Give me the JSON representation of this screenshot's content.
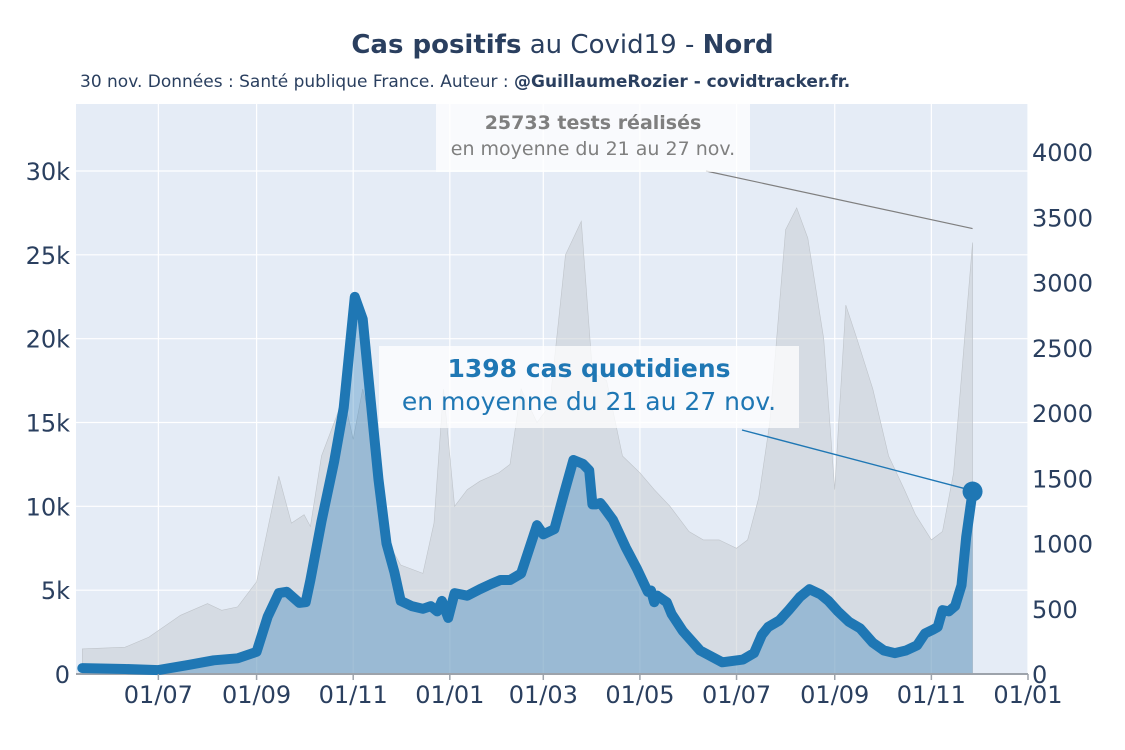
{
  "title": {
    "bold1": "Cas positifs",
    "mid": " au Covid19 - ",
    "bold2": "Nord"
  },
  "subtitle": {
    "prefix": "30 nov. Données : Santé publique France. Auteur : ",
    "author": "@GuillaumeRozier - covidtracker.fr."
  },
  "annotations": {
    "tests_line1": "25733 tests réalisés",
    "tests_line2": "en moyenne du 21 au 27 nov.",
    "cases_line1": "1398 cas quotidiens",
    "cases_line2": "en moyenne du 21 au 27 nov."
  },
  "colors": {
    "background": "#e5ecf6",
    "cases": "#1f77b4",
    "tests": "#c9cdd3",
    "text": "#2a3f5f",
    "annotation_tests": "#7f7f7f"
  },
  "chart_data": {
    "type": "line",
    "title": "Cas positifs au Covid19 - Nord",
    "x_ticks": [
      "01/07",
      "01/09",
      "01/11",
      "01/01",
      "01/03",
      "01/05",
      "01/07",
      "01/09",
      "01/11",
      "01/01"
    ],
    "x_range": [
      "2020-05-10",
      "2022-01-01"
    ],
    "y_left": {
      "ticks": [
        "0",
        "5k",
        "10k",
        "15k",
        "20k",
        "25k",
        "30k"
      ],
      "range": [
        0,
        30000
      ],
      "label": ""
    },
    "y_right": {
      "ticks": [
        "0",
        "500",
        "1000",
        "1500",
        "2000",
        "2500",
        "3000",
        "3500",
        "4000"
      ],
      "range": [
        0,
        4000
      ],
      "label": ""
    },
    "grid": true,
    "series": [
      {
        "role": "cas_positifs_moyenne_7j",
        "axis": "right",
        "kind": "line",
        "x": [
          "2020-05-14",
          "2020-06-10",
          "2020-07-01",
          "2020-07-20",
          "2020-08-05",
          "2020-08-20",
          "2020-09-01",
          "2020-09-08",
          "2020-09-15",
          "2020-09-20",
          "2020-09-28",
          "2020-10-02",
          "2020-10-05",
          "2020-10-12",
          "2020-10-20",
          "2020-10-26",
          "2020-11-02",
          "2020-11-07",
          "2020-11-12",
          "2020-11-17",
          "2020-11-22",
          "2020-11-27",
          "2020-12-01",
          "2020-12-08",
          "2020-12-15",
          "2020-12-20",
          "2020-12-24",
          "2020-12-27",
          "2020-12-31",
          "2021-01-04",
          "2021-01-12",
          "2021-01-20",
          "2021-01-27",
          "2021-02-02",
          "2021-02-08",
          "2021-02-15",
          "2021-02-25",
          "2021-03-01",
          "2021-03-08",
          "2021-03-14",
          "2021-03-20",
          "2021-03-26",
          "2021-03-30",
          "2021-04-01",
          "2021-04-03",
          "2021-04-06",
          "2021-04-08",
          "2021-04-14",
          "2021-04-22",
          "2021-04-29",
          "2021-05-06",
          "2021-05-08",
          "2021-05-10",
          "2021-05-12",
          "2021-05-18",
          "2021-05-21",
          "2021-05-28",
          "2021-06-08",
          "2021-06-22",
          "2021-07-05",
          "2021-07-12",
          "2021-07-17",
          "2021-07-21",
          "2021-07-28",
          "2021-08-03",
          "2021-08-10",
          "2021-08-16",
          "2021-08-23",
          "2021-08-28",
          "2021-09-03",
          "2021-09-10",
          "2021-09-17",
          "2021-09-25",
          "2021-10-02",
          "2021-10-09",
          "2021-10-16",
          "2021-10-23",
          "2021-10-28",
          "2021-11-02",
          "2021-11-05",
          "2021-11-08",
          "2021-11-12",
          "2021-11-16",
          "2021-11-20",
          "2021-11-23",
          "2021-11-27"
        ],
        "y": [
          45,
          38,
          30,
          70,
          105,
          120,
          170,
          440,
          620,
          630,
          545,
          550,
          720,
          1170,
          1630,
          2040,
          2890,
          2720,
          2100,
          1490,
          1000,
          780,
          560,
          520,
          500,
          520,
          480,
          560,
          430,
          620,
          600,
          650,
          690,
          720,
          720,
          770,
          1140,
          1070,
          1110,
          1380,
          1640,
          1610,
          1560,
          1300,
          1300,
          1310,
          1280,
          1180,
          970,
          810,
          630,
          640,
          550,
          600,
          550,
          460,
          330,
          180,
          90,
          110,
          160,
          300,
          360,
          410,
          490,
          590,
          650,
          610,
          560,
          480,
          400,
          350,
          240,
          180,
          160,
          180,
          220,
          310,
          340,
          360,
          490,
          480,
          520,
          680,
          1050,
          1398
        ]
      },
      {
        "role": "tests_realises_moyenne_7j",
        "axis": "left",
        "kind": "area",
        "x": [
          "2020-05-14",
          "2020-06-10",
          "2020-06-25",
          "2020-07-15",
          "2020-08-01",
          "2020-08-10",
          "2020-08-20",
          "2020-09-01",
          "2020-09-15",
          "2020-09-23",
          "2020-10-01",
          "2020-10-05",
          "2020-10-12",
          "2020-10-20",
          "2020-10-26",
          "2020-11-01",
          "2020-11-07",
          "2020-11-15",
          "2020-11-22",
          "2020-12-01",
          "2020-12-15",
          "2020-12-22",
          "2020-12-28",
          "2021-01-04",
          "2021-01-12",
          "2021-01-20",
          "2021-02-01",
          "2021-02-08",
          "2021-02-15",
          "2021-02-25",
          "2021-03-05",
          "2021-03-15",
          "2021-03-25",
          "2021-04-01",
          "2021-04-10",
          "2021-04-20",
          "2021-05-01",
          "2021-05-10",
          "2021-05-20",
          "2021-06-01",
          "2021-06-10",
          "2021-06-20",
          "2021-07-01",
          "2021-07-08",
          "2021-07-15",
          "2021-07-22",
          "2021-08-01",
          "2021-08-08",
          "2021-08-15",
          "2021-08-25",
          "2021-09-01",
          "2021-09-08",
          "2021-09-15",
          "2021-09-25",
          "2021-10-05",
          "2021-10-15",
          "2021-10-22",
          "2021-11-01",
          "2021-11-08",
          "2021-11-15",
          "2021-11-22",
          "2021-11-27"
        ],
        "y": [
          1500,
          1600,
          2200,
          3500,
          4200,
          3800,
          4000,
          5500,
          11800,
          9000,
          9500,
          8800,
          13000,
          15000,
          16500,
          14000,
          17000,
          14000,
          8000,
          6500,
          6000,
          9000,
          17000,
          10000,
          11000,
          11500,
          12000,
          12500,
          17000,
          15000,
          16000,
          25000,
          27000,
          18000,
          17500,
          13000,
          12000,
          11000,
          10000,
          8500,
          8000,
          8000,
          7500,
          8000,
          10500,
          15000,
          26500,
          27800,
          26000,
          20000,
          11000,
          22000,
          20000,
          17000,
          13000,
          11000,
          9500,
          8000,
          8500,
          12000,
          20000,
          25733
        ]
      }
    ]
  }
}
